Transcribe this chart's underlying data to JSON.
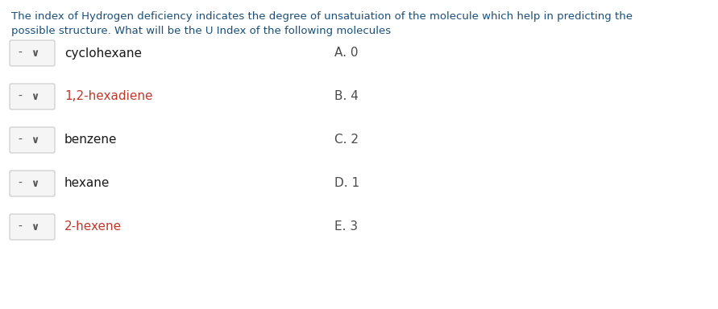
{
  "title_line1": "The index of Hydrogen deficiency indicates the degree of unsatuiation of the molecule which help in predicting the",
  "title_line2": "possible structure. What will be the U Index of the following molecules",
  "title_color": "#1a4f7a",
  "bg_color": "#ffffff",
  "items": [
    {
      "molecule": "cyclohexane",
      "answer": "A. 0",
      "mol_color": "#1a1a1a"
    },
    {
      "molecule": "1,2-hexadiene",
      "answer": "B. 4",
      "mol_color": "#c0392b"
    },
    {
      "molecule": "benzene",
      "answer": "C. 2",
      "mol_color": "#1a1a1a"
    },
    {
      "molecule": "hexane",
      "answer": "D. 1",
      "mol_color": "#1a1a1a"
    },
    {
      "molecule": "2-hexene",
      "answer": "E. 3",
      "mol_color": "#c0392b"
    }
  ],
  "answer_color": "#4a4a4a",
  "box_facecolor": "#f5f5f5",
  "box_edgecolor": "#c8c8c8",
  "dash_color": "#555555",
  "chevron_color": "#555555",
  "font_size_title": 9.5,
  "font_size_items": 11.0,
  "font_size_box": 10.0
}
